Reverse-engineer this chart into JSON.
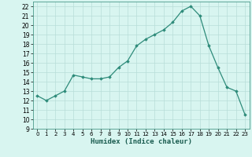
{
  "x": [
    0,
    1,
    2,
    3,
    4,
    5,
    6,
    7,
    8,
    9,
    10,
    11,
    12,
    13,
    14,
    15,
    16,
    17,
    18,
    19,
    20,
    21,
    22,
    23
  ],
  "y": [
    12.5,
    12.0,
    12.5,
    13.0,
    14.7,
    14.5,
    14.3,
    14.3,
    14.5,
    15.5,
    16.2,
    17.8,
    18.5,
    19.0,
    19.5,
    20.3,
    21.5,
    22.0,
    21.0,
    17.8,
    15.5,
    13.4,
    13.0,
    10.5
  ],
  "line_color": "#2e8b7a",
  "marker": "D",
  "marker_size": 1.8,
  "bg_color": "#d8f5f0",
  "grid_color": "#b8ddd8",
  "xlabel": "Humidex (Indice chaleur)",
  "xlim": [
    -0.5,
    23.5
  ],
  "ylim": [
    9,
    22.5
  ],
  "yticks": [
    9,
    10,
    11,
    12,
    13,
    14,
    15,
    16,
    17,
    18,
    19,
    20,
    21,
    22
  ],
  "xticks": [
    0,
    1,
    2,
    3,
    4,
    5,
    6,
    7,
    8,
    9,
    10,
    11,
    12,
    13,
    14,
    15,
    16,
    17,
    18,
    19,
    20,
    21,
    22,
    23
  ]
}
